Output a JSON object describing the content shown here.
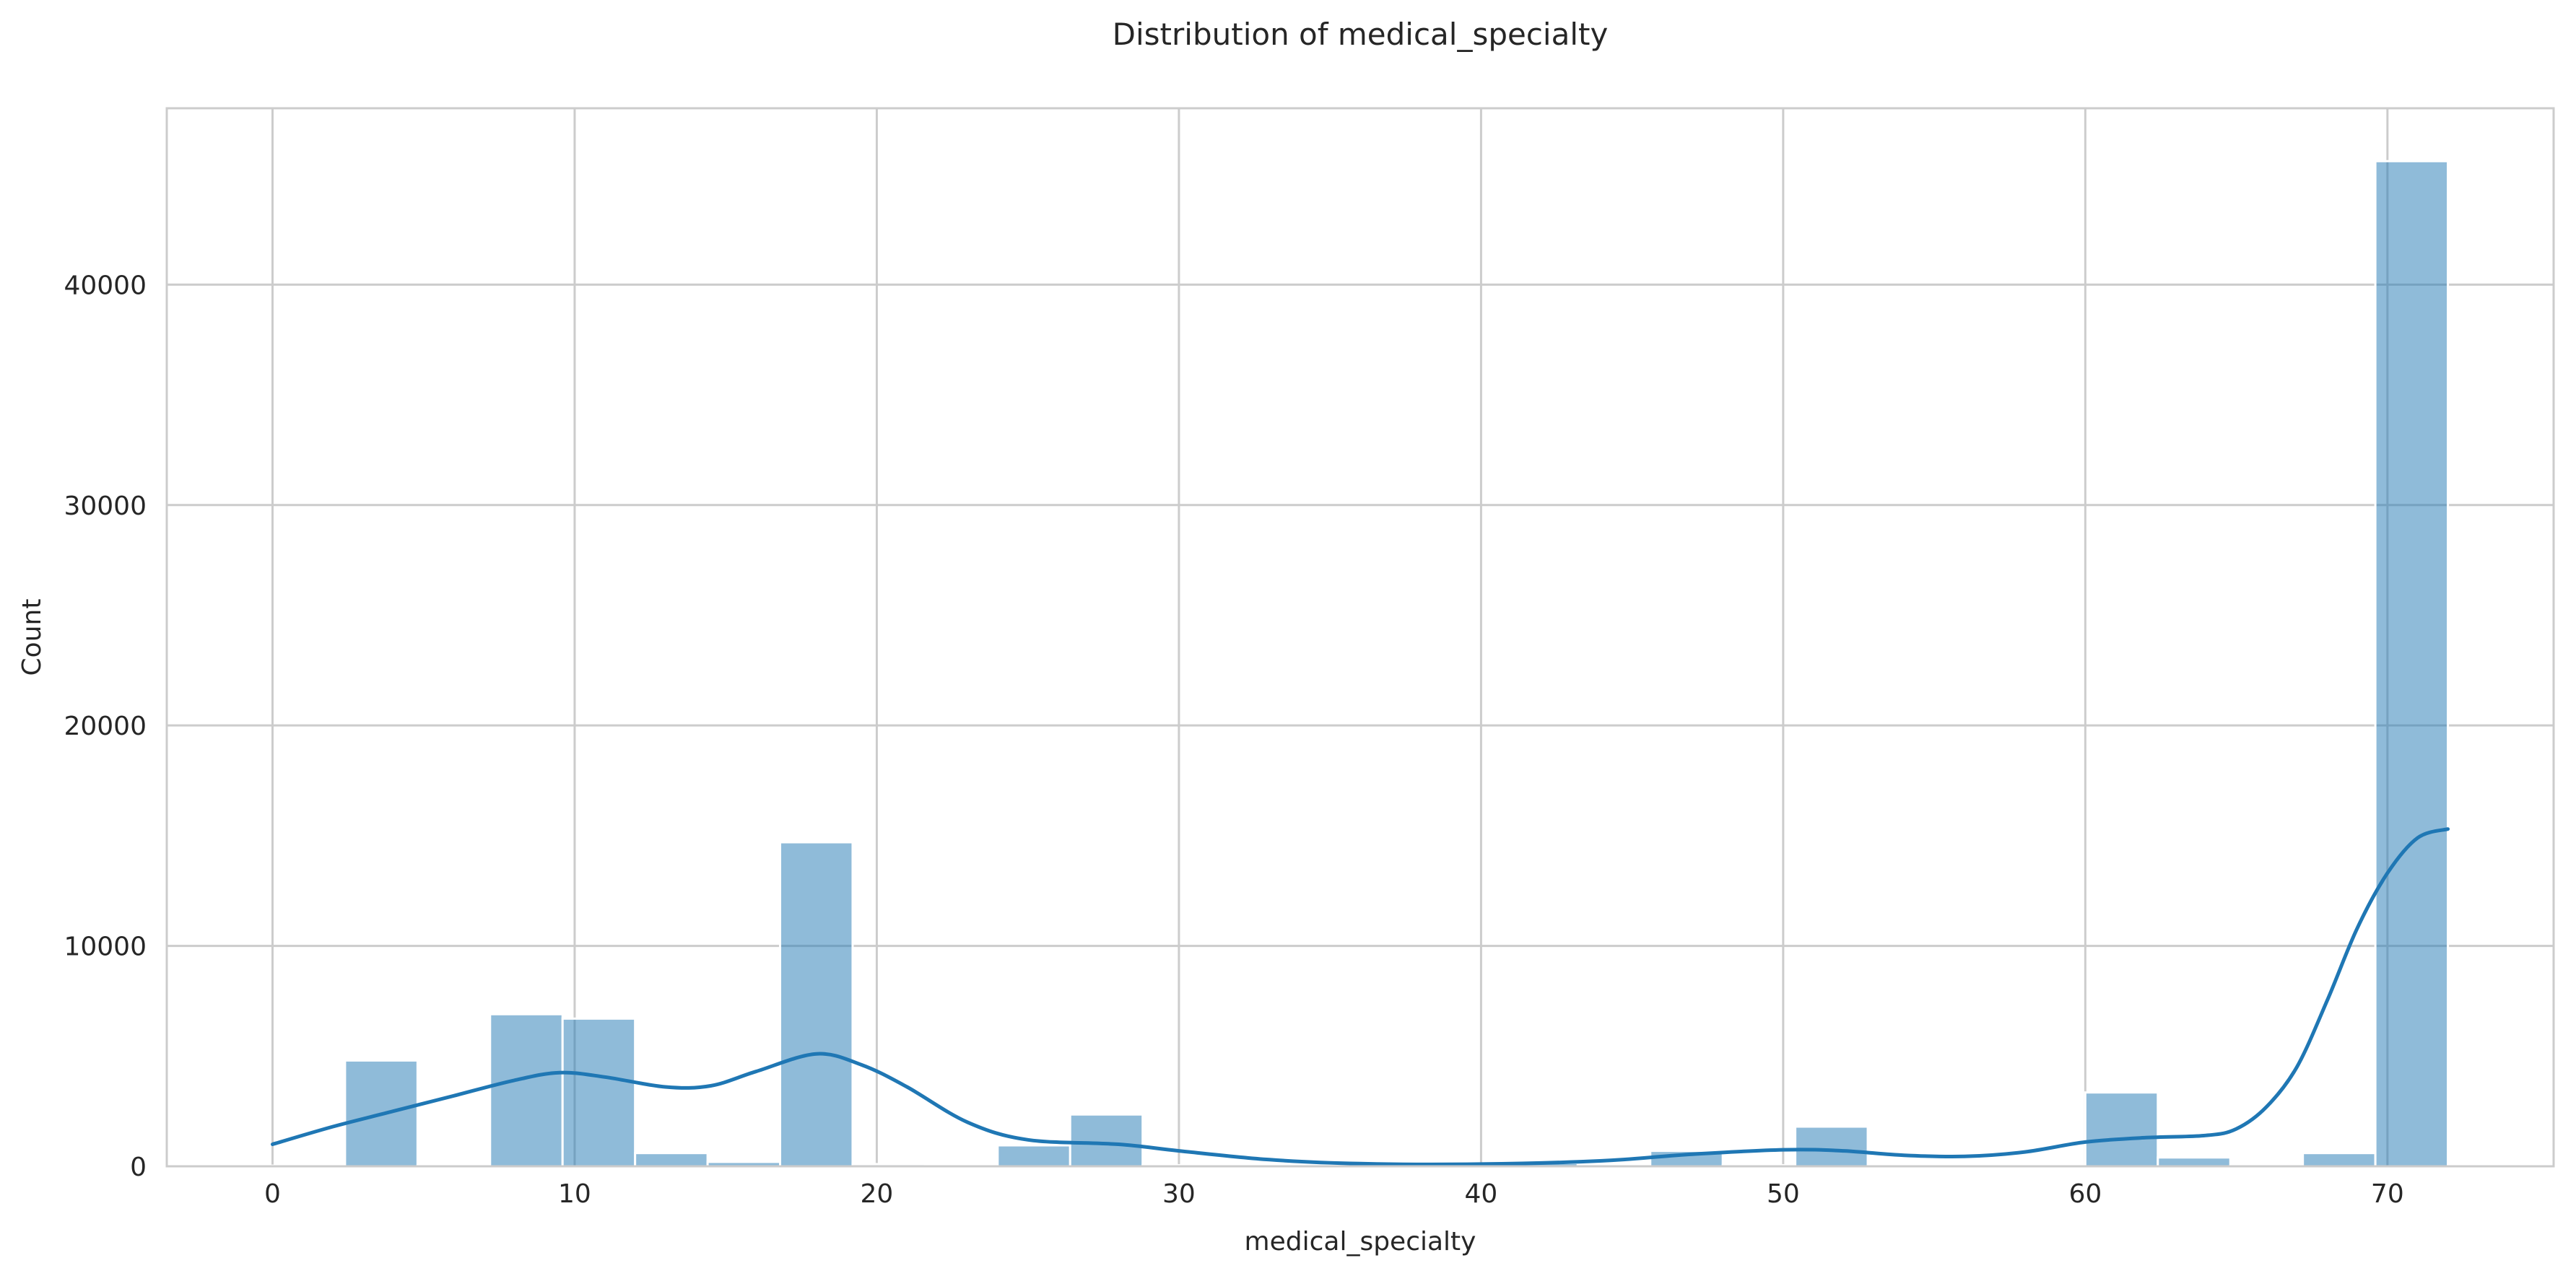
{
  "chart_data": {
    "type": "bar",
    "title": "Distribution of medical_specialty",
    "xlabel": "medical_specialty",
    "ylabel": "Count",
    "xlim": [
      -3.5,
      75.5
    ],
    "ylim": [
      0,
      48000
    ],
    "xticks": [
      0,
      10,
      20,
      30,
      40,
      50,
      60,
      70
    ],
    "yticks": [
      0,
      10000,
      20000,
      30000,
      40000
    ],
    "grid": true,
    "bin_width": 2.4,
    "bins": [
      {
        "x0": 0.0,
        "x1": 2.4,
        "count": 30
      },
      {
        "x0": 2.4,
        "x1": 4.8,
        "count": 4800
      },
      {
        "x0": 4.8,
        "x1": 7.2,
        "count": 30
      },
      {
        "x0": 7.2,
        "x1": 9.6,
        "count": 6900
      },
      {
        "x0": 9.6,
        "x1": 12.0,
        "count": 6700
      },
      {
        "x0": 12.0,
        "x1": 14.4,
        "count": 600
      },
      {
        "x0": 14.4,
        "x1": 16.8,
        "count": 200
      },
      {
        "x0": 16.8,
        "x1": 19.2,
        "count": 14700
      },
      {
        "x0": 19.2,
        "x1": 21.6,
        "count": 100
      },
      {
        "x0": 21.6,
        "x1": 24.0,
        "count": 20
      },
      {
        "x0": 24.0,
        "x1": 26.4,
        "count": 950
      },
      {
        "x0": 26.4,
        "x1": 28.8,
        "count": 2350
      },
      {
        "x0": 28.8,
        "x1": 31.2,
        "count": 50
      },
      {
        "x0": 31.2,
        "x1": 33.6,
        "count": 40
      },
      {
        "x0": 33.6,
        "x1": 36.0,
        "count": 20
      },
      {
        "x0": 36.0,
        "x1": 38.4,
        "count": 20
      },
      {
        "x0": 38.4,
        "x1": 40.8,
        "count": 40
      },
      {
        "x0": 40.8,
        "x1": 43.2,
        "count": 150
      },
      {
        "x0": 43.2,
        "x1": 45.6,
        "count": 50
      },
      {
        "x0": 45.6,
        "x1": 48.0,
        "count": 700
      },
      {
        "x0": 48.0,
        "x1": 50.4,
        "count": 50
      },
      {
        "x0": 50.4,
        "x1": 52.8,
        "count": 1800
      },
      {
        "x0": 52.8,
        "x1": 55.2,
        "count": 30
      },
      {
        "x0": 55.2,
        "x1": 57.6,
        "count": 30
      },
      {
        "x0": 57.6,
        "x1": 60.0,
        "count": 30
      },
      {
        "x0": 60.0,
        "x1": 62.4,
        "count": 3350
      },
      {
        "x0": 62.4,
        "x1": 64.8,
        "count": 400
      },
      {
        "x0": 64.8,
        "x1": 67.2,
        "count": 30
      },
      {
        "x0": 67.2,
        "x1": 69.6,
        "count": 600
      },
      {
        "x0": 69.6,
        "x1": 72.0,
        "count": 45600
      }
    ],
    "kde": {
      "x": [
        0,
        2,
        4,
        6,
        8,
        9.5,
        11,
        13,
        14.5,
        16,
        18,
        19.5,
        21,
        23,
        25,
        28,
        30,
        33,
        36,
        40,
        44,
        47,
        50,
        52,
        54,
        56,
        58,
        60,
        62,
        64,
        65,
        66,
        67,
        68,
        69,
        70,
        71,
        72
      ],
      "y": [
        1000,
        1800,
        2500,
        3200,
        3900,
        4250,
        4050,
        3600,
        3650,
        4300,
        5100,
        4600,
        3600,
        2000,
        1200,
        1000,
        700,
        300,
        120,
        100,
        250,
        550,
        750,
        700,
        500,
        450,
        650,
        1100,
        1300,
        1400,
        1700,
        2700,
        4500,
        7500,
        10800,
        13300,
        14900,
        15300
      ]
    }
  }
}
